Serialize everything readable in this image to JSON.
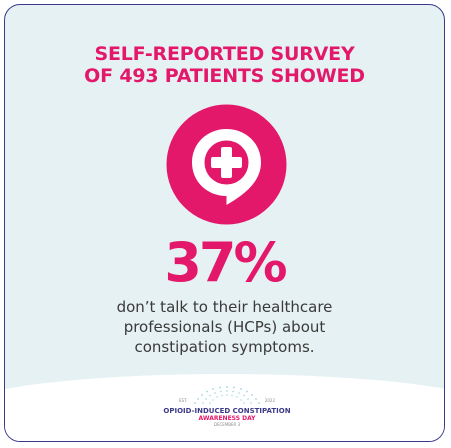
{
  "heading": {
    "line1": "SELF-REPORTED SURVEY",
    "line2": "OF 493 PATIENTS SHOWED"
  },
  "stat": {
    "value": "37%"
  },
  "description": {
    "line1": "don’t talk to their healthcare",
    "line2": "professionals (HCPs) about",
    "line3": "constipation symptoms."
  },
  "logo": {
    "line1": "OPIOID-INDUCED CONSTIPATION",
    "line2": "AWARENESS DAY",
    "line3": "DECEMBER 3",
    "est": "EST.",
    "year": "2022"
  },
  "icons": {
    "center": "medical-cross-speech-bubble-icon"
  },
  "colors": {
    "accent": "#e3186a",
    "navy": "#3b3a8a",
    "background": "#e6f1f3"
  }
}
